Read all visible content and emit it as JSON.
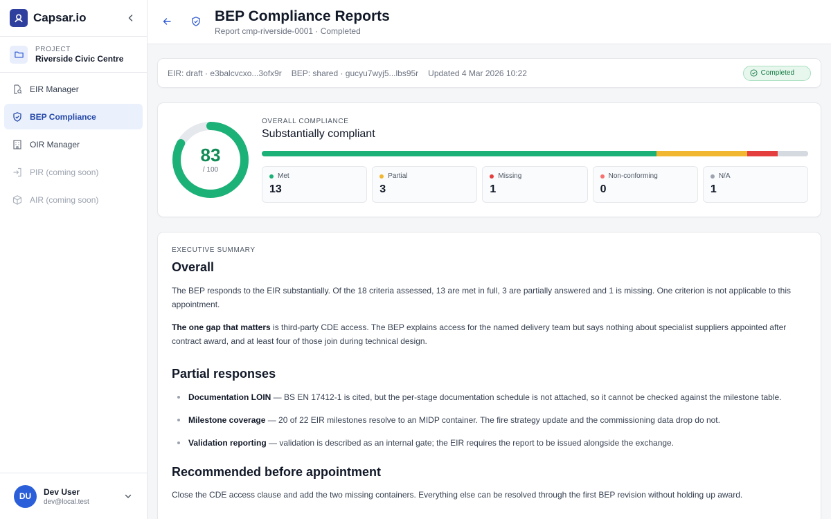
{
  "brand": {
    "name": "Capsar.io"
  },
  "project": {
    "caption": "PROJECT",
    "name": "Riverside Civic Centre"
  },
  "nav": [
    {
      "label": "EIR Manager",
      "icon": "document-search-icon"
    },
    {
      "label": "BEP Compliance",
      "icon": "shield-check-icon"
    },
    {
      "label": "OIR Manager",
      "icon": "building-icon"
    },
    {
      "label": "PIR (coming soon)",
      "icon": "login-arrow-icon"
    },
    {
      "label": "AIR (coming soon)",
      "icon": "cube-icon"
    }
  ],
  "user": {
    "initials": "DU",
    "name": "Dev User",
    "email": "dev@local.test"
  },
  "header": {
    "title": "BEP Compliance Reports",
    "subtitle": "Report cmp-riverside-0001 · Completed"
  },
  "meta": {
    "eir": "EIR: draft · e3balcvcxo...3ofx9r",
    "bep": "BEP: shared · gucyu7wyj5...lbs95r",
    "updated": "Updated 4 Mar 2026 10:22",
    "status": "Completed"
  },
  "score": {
    "value": "83",
    "of": "/ 100",
    "fraction": 0.83,
    "caption": "OVERALL COMPLIANCE",
    "status": "Substantially compliant",
    "colors": {
      "met": "#1bb177",
      "partial": "#f2b731",
      "missing": "#e53e3e",
      "nonconforming": "#f87171",
      "na": "#d5d9e0"
    },
    "stats": [
      {
        "label": "Met",
        "value": "13",
        "count": 13,
        "color": "#1bb177"
      },
      {
        "label": "Partial",
        "value": "3",
        "count": 3,
        "color": "#f2b731"
      },
      {
        "label": "Missing",
        "value": "1",
        "count": 1,
        "color": "#e53e3e"
      },
      {
        "label": "Non-conforming",
        "value": "0",
        "count": 0,
        "color": "#f87171"
      },
      {
        "label": "N/A",
        "value": "1",
        "count": 1,
        "color": "#9ca3af"
      }
    ]
  },
  "summary": {
    "caption": "EXECUTIVE SUMMARY",
    "overall_heading": "Overall",
    "p1": "The BEP responds to the EIR substantially. Of the 18 criteria assessed, 13 are met in full, 3 are partially answered and 1 is missing. One criterion is not applicable to this appointment.",
    "p2_bold": "The one gap that matters",
    "p2_rest": " is third-party CDE access. The BEP explains access for the named delivery team but says nothing about specialist suppliers appointed after contract award, and at least four of those join during technical design.",
    "partial_heading": "Partial responses",
    "bullets": [
      {
        "bold": "Documentation LOIN",
        "text": " — BS EN 17412-1 is cited, but the per-stage documentation schedule is not attached, so it cannot be checked against the milestone table."
      },
      {
        "bold": "Milestone coverage",
        "text": " — 20 of 22 EIR milestones resolve to an MIDP container. The fire strategy update and the commissioning data drop do not."
      },
      {
        "bold": "Validation reporting",
        "text": " — validation is described as an internal gate; the EIR requires the report to be issued alongside the exchange."
      }
    ],
    "recommended_heading": "Recommended before appointment",
    "p3": "Close the CDE access clause and add the two missing containers. Everything else can be resolved through the first BEP revision without holding up award."
  }
}
